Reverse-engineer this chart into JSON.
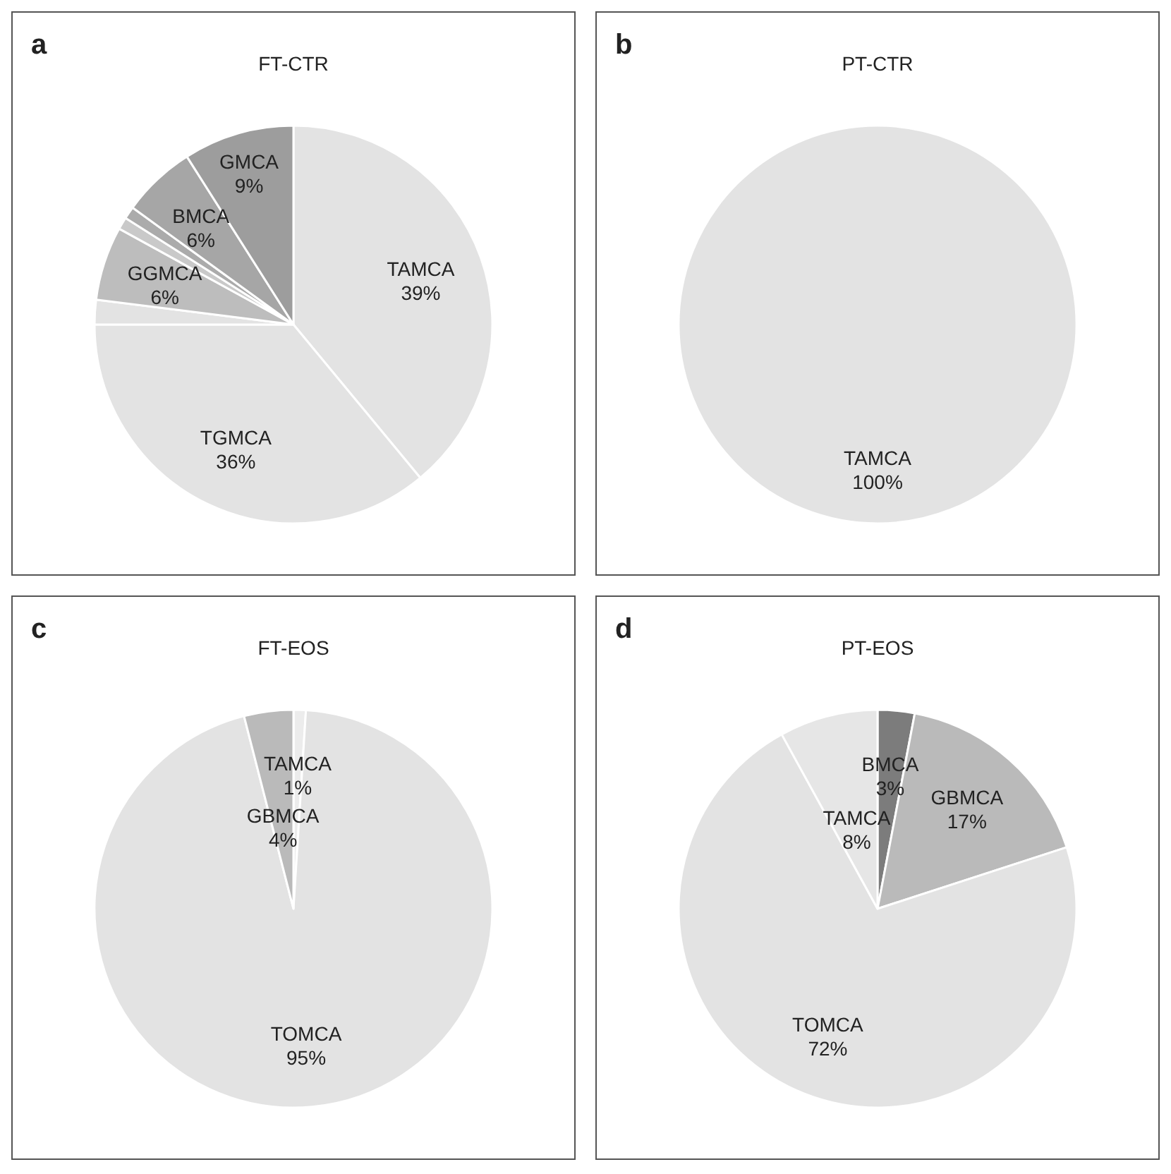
{
  "chart_data": [
    {
      "type": "pie",
      "title": "FT-CTR",
      "annotations": [
        "a"
      ],
      "categories": [
        "TAMCA",
        "TGMCA",
        null,
        "GGMCA",
        null,
        null,
        "BMCA",
        "GMCA"
      ],
      "values": [
        39,
        36,
        2,
        6,
        1,
        1,
        6,
        9
      ],
      "value_labels": [
        "39%",
        "36%",
        null,
        "6%",
        null,
        null,
        "6%",
        "9%"
      ],
      "colors": [
        "#e3e3e3",
        "#e3e3e3",
        "#e3e3e3",
        "#bdbdbd",
        "#c9c9c9",
        "#ababab",
        "#a6a6a6",
        "#9d9d9d"
      ]
    },
    {
      "type": "pie",
      "title": "PT-CTR",
      "annotations": [
        "b"
      ],
      "categories": [
        "TAMCA"
      ],
      "values": [
        100
      ],
      "value_labels": [
        "100%"
      ],
      "colors": [
        "#e3e3e3"
      ]
    },
    {
      "type": "pie",
      "title": "FT-EOS",
      "annotations": [
        "c"
      ],
      "categories": [
        "TAMCA",
        "TOMCA",
        "GBMCA"
      ],
      "values": [
        1,
        95,
        4
      ],
      "value_labels": [
        "1%",
        "95%",
        "4%"
      ],
      "colors": [
        "#ececec",
        "#e3e3e3",
        "#bababa"
      ]
    },
    {
      "type": "pie",
      "title": "PT-EOS",
      "annotations": [
        "d"
      ],
      "categories": [
        "BMCA",
        "GBMCA",
        "TOMCA",
        "TAMCA"
      ],
      "values": [
        3,
        17,
        72,
        8
      ],
      "value_labels": [
        "3%",
        "17%",
        "72%",
        "8%"
      ],
      "colors": [
        "#7c7c7c",
        "#bababa",
        "#e3e3e3",
        "#e6e6e6"
      ]
    }
  ]
}
